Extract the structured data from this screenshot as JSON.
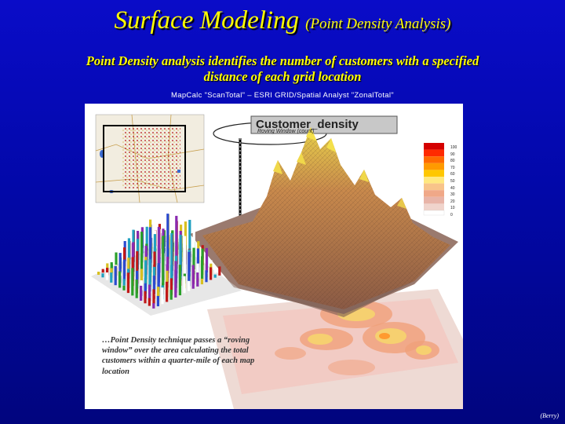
{
  "slide": {
    "title_main": "Surface Modeling",
    "title_sub": "(Point Density Analysis)",
    "subtitle": "Point Density analysis identifies the number of customers with a specified distance of each grid location",
    "calc_line": "MapCalc \"ScanTotal\" – ESRI GRID/Spatial Analyst \"ZonalTotal\"",
    "credit": "(Berry)"
  },
  "figure": {
    "heading": "Customer_density",
    "roving_label": "Roving Window (count)",
    "caption": "…Point Density technique passes a “roving window” over the area calculating the total customers within a quarter-mile of each map location",
    "legend": {
      "labels": [
        "100",
        "90",
        "80",
        "70",
        "60",
        "50",
        "40",
        "30",
        "20",
        "10",
        "0"
      ],
      "colors": [
        "#d40000",
        "#ff2a00",
        "#ff6a00",
        "#ff9a00",
        "#ffc700",
        "#ffe880",
        "#f8c48a",
        "#f0a888",
        "#e8b4a8",
        "#f0d4cc",
        "#ffffff"
      ]
    }
  }
}
